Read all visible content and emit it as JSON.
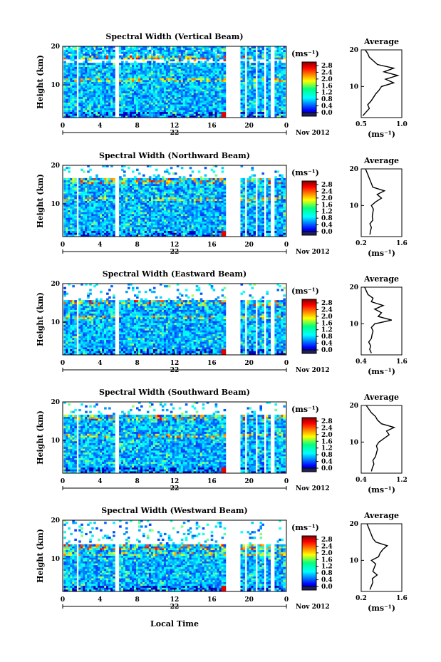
{
  "figure": {
    "xlabel": "Local Time",
    "date_label": "Nov 2012",
    "day_label": "22",
    "colorbar_units": "(ms⁻¹)",
    "avg_title": "Average",
    "avg_xlabel": "(ms⁻¹)"
  },
  "chart_data": [
    {
      "type": "heatmap",
      "title": "Spectral Width (Vertical Beam)",
      "ylabel": "Height (km)",
      "xlim": [
        0,
        24
      ],
      "ylim": [
        1.5,
        20
      ],
      "x_ticks": [
        "0",
        "4",
        "8",
        "12",
        "16",
        "20",
        "0"
      ],
      "y_ticks": [
        "10",
        "20"
      ],
      "colorbar": {
        "ticks": [
          "2.8",
          "2.4",
          "2.0",
          "1.6",
          "1.2",
          "0.8",
          "0.4",
          "0.0"
        ],
        "range": [
          0,
          2.8
        ]
      },
      "data_gaps_hours": [
        [
          1.3,
          1.6
        ],
        [
          5.4,
          5.9
        ],
        [
          17.4,
          18.9
        ],
        [
          19.4,
          19.6
        ],
        [
          20.5,
          20.8
        ],
        [
          21.4,
          21.8
        ],
        [
          22.2,
          22.5
        ]
      ],
      "typical_width": 0.6,
      "profile": {
        "xlim": [
          0.5,
          1.0
        ],
        "x_ticks": [
          "0.5",
          "1.0"
        ],
        "y_ticks": [
          "10",
          "20"
        ],
        "heights": [
          2,
          3,
          4,
          5,
          6,
          7,
          8,
          9,
          10,
          11,
          12,
          13,
          14,
          15,
          16,
          17,
          18,
          19,
          20
        ],
        "values": [
          0.52,
          0.56,
          0.6,
          0.58,
          0.62,
          0.65,
          0.68,
          0.72,
          0.75,
          0.9,
          0.8,
          0.95,
          0.78,
          0.9,
          0.7,
          0.65,
          0.6,
          0.58,
          0.55
        ]
      }
    },
    {
      "type": "heatmap",
      "title": "Spectral Width (Northward Beam)",
      "ylabel": "Height (km)",
      "xlim": [
        0,
        24
      ],
      "ylim": [
        1.5,
        20
      ],
      "x_ticks": [
        "0",
        "4",
        "8",
        "12",
        "16",
        "20",
        "0"
      ],
      "y_ticks": [
        "10",
        "20"
      ],
      "colorbar": {
        "ticks": [
          "2.8",
          "2.4",
          "2.0",
          "1.6",
          "1.2",
          "0.8",
          "0.4",
          "0.0"
        ],
        "range": [
          0,
          2.8
        ]
      },
      "data_gaps_hours": [
        [
          1.3,
          1.6
        ],
        [
          5.4,
          5.9
        ],
        [
          17.4,
          18.9
        ],
        [
          19.4,
          19.6
        ],
        [
          20.5,
          20.8
        ],
        [
          21.4,
          21.8
        ],
        [
          22.2,
          22.5
        ]
      ],
      "typical_width": 0.7,
      "profile": {
        "xlim": [
          0.2,
          1.6
        ],
        "x_ticks": [
          "0.2",
          "1.6"
        ],
        "y_ticks": [
          "10",
          "20"
        ],
        "heights": [
          2,
          3,
          4,
          5,
          6,
          7,
          8,
          9,
          10,
          11,
          12,
          13,
          14,
          15,
          16,
          17,
          18,
          19,
          20
        ],
        "values": [
          0.5,
          0.52,
          0.55,
          0.5,
          0.6,
          0.58,
          0.6,
          0.62,
          0.55,
          0.7,
          0.9,
          0.75,
          1.0,
          0.6,
          0.55,
          0.5,
          0.45,
          0.4,
          0.35
        ]
      }
    },
    {
      "type": "heatmap",
      "title": "Spectral Width (Eastward Beam)",
      "ylabel": "Height (km)",
      "xlim": [
        0,
        24
      ],
      "ylim": [
        1.5,
        20
      ],
      "x_ticks": [
        "0",
        "4",
        "8",
        "12",
        "16",
        "20",
        "0"
      ],
      "y_ticks": [
        "10",
        "20"
      ],
      "colorbar": {
        "ticks": [
          "2.8",
          "2.4",
          "2.0",
          "1.6",
          "1.2",
          "0.8",
          "0.4",
          "0.0"
        ],
        "range": [
          0,
          2.8
        ]
      },
      "data_gaps_hours": [
        [
          1.3,
          1.6
        ],
        [
          5.4,
          5.9
        ],
        [
          17.4,
          18.9
        ],
        [
          19.4,
          19.6
        ],
        [
          20.5,
          20.8
        ],
        [
          21.4,
          21.8
        ],
        [
          22.2,
          22.5
        ]
      ],
      "typical_width": 0.7,
      "profile": {
        "xlim": [
          0.4,
          1.6
        ],
        "x_ticks": [
          "0.4",
          "1.6"
        ],
        "y_ticks": [
          "10",
          "20"
        ],
        "heights": [
          2,
          3,
          4,
          5,
          6,
          7,
          8,
          9,
          10,
          11,
          12,
          13,
          14,
          15,
          16,
          17,
          18,
          19,
          20
        ],
        "values": [
          0.7,
          0.65,
          0.68,
          0.62,
          0.7,
          0.72,
          0.75,
          0.7,
          0.8,
          1.3,
          0.9,
          1.0,
          0.8,
          1.05,
          0.7,
          0.75,
          0.6,
          0.55,
          0.5
        ]
      }
    },
    {
      "type": "heatmap",
      "title": "Spectral Width (Southward Beam)",
      "ylabel": "Height (km)",
      "xlim": [
        0,
        24
      ],
      "ylim": [
        1.5,
        20
      ],
      "x_ticks": [
        "0",
        "4",
        "8",
        "12",
        "16",
        "20",
        "0"
      ],
      "y_ticks": [
        "10",
        "20"
      ],
      "colorbar": {
        "ticks": [
          "2.8",
          "2.4",
          "2.0",
          "1.6",
          "1.2",
          "0.8",
          "0.4",
          "0.0"
        ],
        "range": [
          0,
          2.8
        ]
      },
      "data_gaps_hours": [
        [
          1.3,
          1.6
        ],
        [
          5.4,
          5.9
        ],
        [
          17.4,
          18.9
        ],
        [
          19.4,
          19.6
        ],
        [
          20.5,
          20.8
        ],
        [
          21.4,
          21.8
        ],
        [
          22.2,
          22.5
        ]
      ],
      "typical_width": 0.7,
      "profile": {
        "xlim": [
          0.4,
          1.2
        ],
        "x_ticks": [
          "0.4",
          "1.2"
        ],
        "y_ticks": [
          "10",
          "20"
        ],
        "heights": [
          2,
          3,
          4,
          5,
          6,
          7,
          8,
          9,
          10,
          11,
          12,
          13,
          14,
          15,
          16,
          17,
          18,
          19,
          20
        ],
        "values": [
          0.6,
          0.62,
          0.65,
          0.63,
          0.68,
          0.7,
          0.72,
          0.7,
          0.75,
          0.85,
          0.95,
          0.9,
          1.05,
          0.8,
          0.72,
          0.68,
          0.6,
          0.55,
          0.5
        ]
      }
    },
    {
      "type": "heatmap",
      "title": "Spectral Width (Westward Beam)",
      "ylabel": "Height (km)",
      "xlim": [
        0,
        24
      ],
      "ylim": [
        1.5,
        20
      ],
      "x_ticks": [
        "0",
        "4",
        "8",
        "12",
        "16",
        "20",
        "0"
      ],
      "y_ticks": [
        "10",
        "20"
      ],
      "colorbar": {
        "ticks": [
          "2.8",
          "2.4",
          "2.0",
          "1.6",
          "1.2",
          "0.8",
          "0.4",
          "0.0"
        ],
        "range": [
          0,
          2.8
        ]
      },
      "data_gaps_hours": [
        [
          1.3,
          1.6
        ],
        [
          5.4,
          5.9
        ],
        [
          17.4,
          18.9
        ],
        [
          19.4,
          19.6
        ],
        [
          20.5,
          20.8
        ],
        [
          21.4,
          21.8
        ],
        [
          22.2,
          22.5
        ]
      ],
      "typical_width": 0.7,
      "profile": {
        "xlim": [
          0.2,
          1.6
        ],
        "x_ticks": [
          "0.2",
          "1.6"
        ],
        "y_ticks": [
          "10",
          "20"
        ],
        "heights": [
          2,
          3,
          4,
          5,
          6,
          7,
          8,
          9,
          10,
          11,
          12,
          13,
          14,
          15,
          16,
          17,
          18,
          19,
          20
        ],
        "values": [
          0.5,
          0.55,
          0.6,
          0.58,
          0.75,
          0.6,
          0.65,
          0.7,
          0.55,
          0.8,
          0.85,
          0.95,
          1.1,
          0.7,
          0.6,
          0.55,
          0.5,
          0.45,
          0.4
        ]
      }
    }
  ]
}
